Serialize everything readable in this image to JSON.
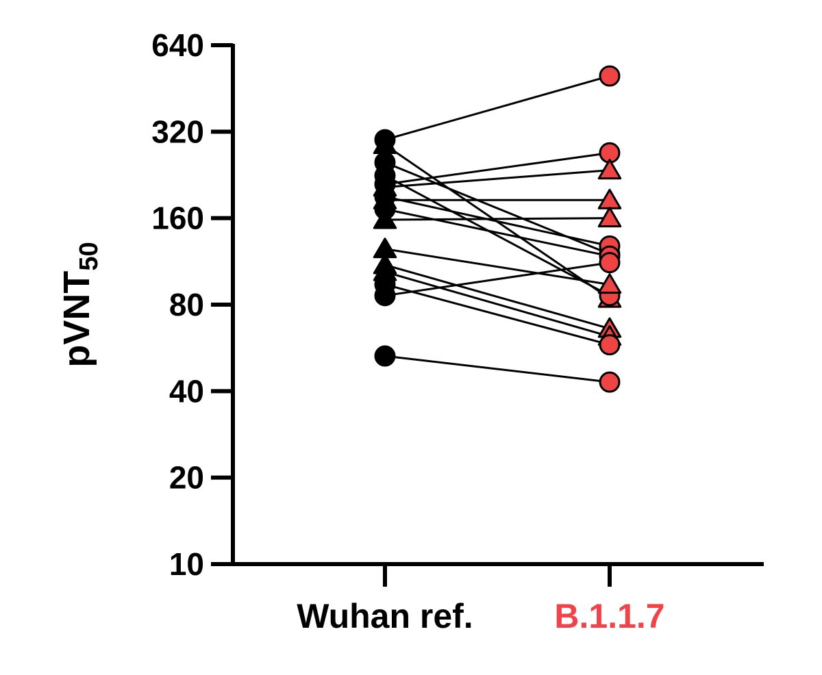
{
  "chart_data": {
    "type": "scatter",
    "subtype": "paired-before-after",
    "ylabel": "pVNT",
    "ylabel_subscript": "50",
    "yscale": "log2",
    "ylim": [
      10,
      640
    ],
    "yticks": [
      10,
      20,
      40,
      80,
      160,
      320,
      640
    ],
    "ytick_labels": [
      "10",
      "20",
      "40",
      "80",
      "160",
      "320",
      "640"
    ],
    "categories": [
      "Wuhan ref.",
      "B.1.1.7"
    ],
    "category_colors": [
      "#000000",
      "#f0434a"
    ],
    "marker_colors": {
      "Wuhan ref.": "#000000",
      "B.1.1.7": "#ee4444"
    },
    "pairs": [
      {
        "marker": "circle",
        "values": [
          300,
          500
        ]
      },
      {
        "marker": "triangle",
        "values": [
          288,
          84
        ]
      },
      {
        "marker": "circle",
        "values": [
          250,
          120
        ]
      },
      {
        "marker": "circle",
        "values": [
          225,
          86
        ]
      },
      {
        "marker": "circle",
        "values": [
          210,
          270
        ]
      },
      {
        "marker": "triangle",
        "values": [
          205,
          235
        ]
      },
      {
        "marker": "circle",
        "values": [
          190,
          128
        ]
      },
      {
        "marker": "triangle",
        "values": [
          185,
          185
        ]
      },
      {
        "marker": "circle",
        "values": [
          172,
          118
        ]
      },
      {
        "marker": "triangle",
        "values": [
          158,
          160
        ]
      },
      {
        "marker": "triangle",
        "values": [
          125,
          94
        ]
      },
      {
        "marker": "triangle",
        "values": [
          110,
          66
        ]
      },
      {
        "marker": "triangle",
        "values": [
          104,
          62
        ]
      },
      {
        "marker": "circle",
        "values": [
          94,
          58
        ]
      },
      {
        "marker": "circle",
        "values": [
          86,
          112
        ]
      },
      {
        "marker": "circle",
        "values": [
          53,
          43
        ]
      }
    ],
    "grid": false,
    "legend": "none"
  }
}
